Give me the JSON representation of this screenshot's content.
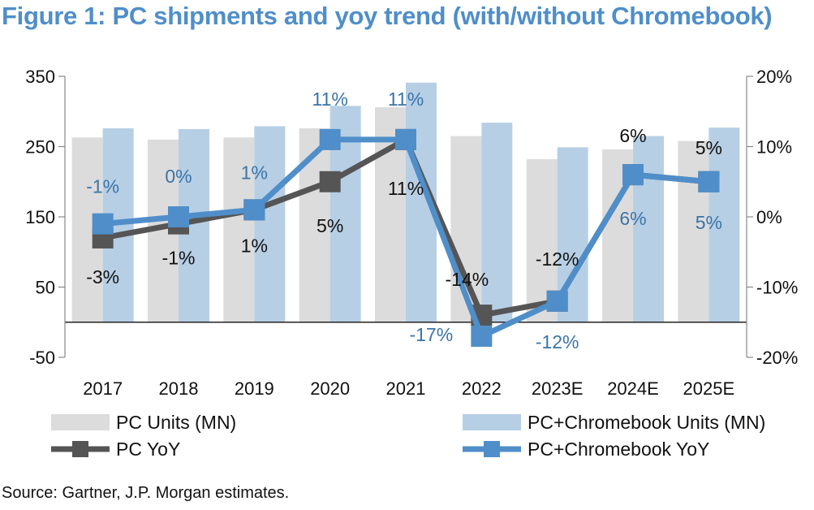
{
  "title": "Figure 1: PC shipments and yoy trend (with/without Chromebook)",
  "source": "Source: Gartner, J.P. Morgan estimates.",
  "colors": {
    "pc_units": "#DCDCDC",
    "chromebook_units": "#B7CFE5",
    "pc_yoy": "#555555",
    "chromebook_yoy": "#4F8EC9",
    "chromebook_label": "#3A74A8",
    "title": "#4F8EC9"
  },
  "chart_data": {
    "type": "bar",
    "categories": [
      "2017",
      "2018",
      "2019",
      "2020",
      "2021",
      "2022",
      "2023E",
      "2024E",
      "2025E"
    ],
    "y_left": {
      "min": -50,
      "max": 350,
      "ticks": [
        "350",
        "250",
        "150",
        "50",
        "-50"
      ]
    },
    "y_right": {
      "min": -20,
      "max": 20,
      "ticks": [
        "20%",
        "10%",
        "0%",
        "-10%",
        "-20%"
      ]
    },
    "series": [
      {
        "name": "PC Units (MN)",
        "kind": "bar",
        "axis": "left",
        "values": [
          263,
          260,
          263,
          276,
          306,
          265,
          232,
          246,
          258
        ]
      },
      {
        "name": "PC+Chromebook Units (MN)",
        "kind": "bar",
        "axis": "left",
        "values": [
          276,
          275,
          279,
          308,
          341,
          284,
          249,
          265,
          277
        ]
      },
      {
        "name": "PC YoY",
        "kind": "line",
        "axis": "right",
        "values": [
          -3,
          -1,
          1,
          5,
          11,
          -14,
          -12,
          6,
          5
        ],
        "labels": [
          "-3%",
          "-1%",
          "1%",
          "5%",
          "11%",
          "-14%",
          "-12%",
          "6%",
          "5%"
        ]
      },
      {
        "name": "PC+Chromebook YoY",
        "kind": "line",
        "axis": "right",
        "values": [
          -1,
          0,
          1,
          11,
          11,
          -17,
          -12,
          6,
          5
        ],
        "labels": [
          "-1%",
          "0%",
          "1%",
          "11%",
          "11%",
          "-17%",
          "-12%",
          "6%",
          "5%"
        ]
      }
    ],
    "legend": [
      {
        "label": "PC Units (MN)",
        "series": 0
      },
      {
        "label": "PC+Chromebook Units (MN)",
        "series": 1
      },
      {
        "label": "PC YoY",
        "series": 2
      },
      {
        "label": "PC+Chromebook YoY",
        "series": 3
      }
    ],
    "legend_position": "bottom",
    "grid": false
  }
}
